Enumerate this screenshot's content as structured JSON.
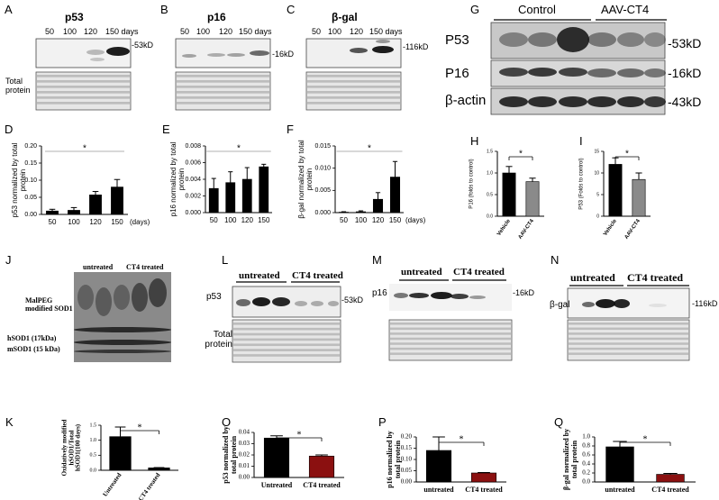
{
  "blots": {
    "A": {
      "panel": "A",
      "title": "p53",
      "lanes": [
        "50",
        "100",
        "120",
        "150 days"
      ],
      "marker": "-53kD",
      "loading": "Total protein"
    },
    "B": {
      "panel": "B",
      "title": "p16",
      "lanes": [
        "50",
        "100",
        "120",
        "150 days"
      ],
      "marker": "-16kD"
    },
    "C": {
      "panel": "C",
      "title": "β-gal",
      "lanes": [
        "50",
        "100",
        "120",
        "150 days"
      ],
      "marker": "-116kD"
    },
    "G": {
      "panel": "G",
      "groups": [
        "Control",
        "AAV-CT4"
      ],
      "rows": [
        "P53",
        "P16",
        "β-actin"
      ],
      "markers": [
        "-53kD",
        "-16kD",
        "-43kD"
      ]
    },
    "J": {
      "panel": "J",
      "groups": [
        "untreated",
        "CT4 treated"
      ],
      "bands": [
        "MalPEG modified SOD1",
        "hSOD1 (17kDa)",
        "mSOD1 (15 kDa)"
      ]
    },
    "L": {
      "panel": "L",
      "groups": [
        "untreated",
        "CT4 treated"
      ],
      "title": "p53",
      "marker": "-53kD",
      "loading": "Total protein"
    },
    "M": {
      "panel": "M",
      "groups": [
        "untreated",
        "CT4 treated"
      ],
      "title": "p16",
      "marker": "-16kD"
    },
    "N": {
      "panel": "N",
      "groups": [
        "untreated",
        "CT4 treated"
      ],
      "title": "β-gal",
      "marker": "-116kD"
    }
  },
  "chart_data": [
    {
      "type": "bar",
      "panel": "D",
      "y_label": "p53 normalized by total protein",
      "x_label": "(days)",
      "categories": [
        "50",
        "100",
        "120",
        "150"
      ],
      "values": [
        0.01,
        0.012,
        0.057,
        0.08
      ],
      "errors": [
        0.005,
        0.008,
        0.01,
        0.022
      ],
      "colors": [
        "#000000",
        "#000000",
        "#000000",
        "#000000"
      ],
      "ylim": [
        0,
        0.2
      ],
      "yticks": [
        {
          "value": 0,
          "label": "0.00"
        },
        0.05,
        {
          "value": 0.1,
          "label": "0.10"
        },
        0.15,
        {
          "value": 0.2,
          "label": "0.20"
        }
      ],
      "annotation": "*"
    },
    {
      "type": "bar",
      "panel": "E",
      "y_label": "p16 normalized by total protein",
      "categories": [
        "50",
        "100",
        "120",
        "150"
      ],
      "values": [
        0.0029,
        0.0036,
        0.004,
        0.0055
      ],
      "errors": [
        0.0012,
        0.0013,
        0.0014,
        0.0003
      ],
      "colors": [
        "#000000",
        "#000000",
        "#000000",
        "#000000"
      ],
      "ylim": [
        0,
        0.008
      ],
      "yticks": [
        {
          "value": 0,
          "label": "0.000"
        },
        {
          "value": 0.002,
          "label": "0.002"
        },
        {
          "value": 0.004,
          "label": "0.004"
        },
        {
          "value": 0.006,
          "label": "0.006"
        },
        {
          "value": 0.008,
          "label": "0.008"
        }
      ],
      "annotation": "*"
    },
    {
      "type": "bar",
      "panel": "F",
      "y_label": "β-gal normalized by total protein",
      "x_label": "(days)",
      "categories": [
        "50",
        "100",
        "120",
        "150"
      ],
      "values": [
        0.0001,
        0.0002,
        0.003,
        0.008
      ],
      "errors": [
        0.0001,
        0.0002,
        0.0015,
        0.0035
      ],
      "colors": [
        "#000000",
        "#000000",
        "#000000",
        "#000000"
      ],
      "ylim": [
        0,
        0.015
      ],
      "yticks": [
        {
          "value": 0,
          "label": "0.000"
        },
        {
          "value": 0.005,
          "label": "0.005"
        },
        {
          "value": 0.01,
          "label": "0.010"
        },
        {
          "value": 0.015,
          "label": "0.015"
        }
      ],
      "annotation": "*"
    },
    {
      "type": "bar",
      "panel": "H",
      "y_label": "P16 (folds to control)",
      "categories": [
        "Vehicle",
        "AAV-CT4"
      ],
      "values": [
        1.0,
        0.8
      ],
      "errors": [
        0.15,
        0.08
      ],
      "colors": [
        "#000000",
        "#8a8a8a"
      ],
      "ylim": [
        0,
        1.5
      ],
      "yticks": [
        {
          "value": 0,
          "label": "0.0"
        },
        0.5,
        {
          "value": 1,
          "label": "1.0"
        },
        1.5
      ],
      "annotation": "*"
    },
    {
      "type": "bar",
      "panel": "I",
      "y_label": "P53 (Folds to control)",
      "categories": [
        "Vehicle",
        "AAV-CT4"
      ],
      "values": [
        12,
        8.5
      ],
      "errors": [
        1.5,
        1.5
      ],
      "colors": [
        "#000000",
        "#8a8a8a"
      ],
      "ylim": [
        0,
        15
      ],
      "yticks": [
        0,
        5,
        10,
        15
      ],
      "annotation": "*"
    },
    {
      "type": "bar",
      "panel": "K",
      "y_label": "Oxidatively modified hSOD1/Total hSOD1(100 days)",
      "categories": [
        "Untreated",
        "CT4 treated"
      ],
      "values": [
        1.12,
        0.08
      ],
      "errors": [
        0.32,
        0.01
      ],
      "colors": [
        "#000000",
        "#000000"
      ],
      "ylim": [
        0,
        1.5
      ],
      "yticks": [
        {
          "value": 0,
          "label": "0.0"
        },
        0.5,
        {
          "value": 1,
          "label": "1.0"
        },
        1.5
      ],
      "annotation": "*"
    },
    {
      "type": "bar",
      "panel": "O",
      "y_label": "p53 normalized by total protein",
      "categories": [
        "Untreated",
        "CT4 treated"
      ],
      "values": [
        0.035,
        0.019
      ],
      "errors": [
        0.002,
        0.001
      ],
      "colors": [
        "#000000",
        "#8b1010"
      ],
      "ylim": [
        0,
        0.04
      ],
      "yticks": [
        {
          "value": 0,
          "label": "0.00"
        },
        0.01,
        0.02,
        0.03,
        0.04
      ],
      "annotation": "*"
    },
    {
      "type": "bar",
      "panel": "P",
      "y_label": "p16 normalized by total protein",
      "categories": [
        "untreated",
        "CT4 treated"
      ],
      "values": [
        0.14,
        0.04
      ],
      "errors": [
        0.06,
        0.002
      ],
      "colors": [
        "#000000",
        "#8b1010"
      ],
      "ylim": [
        0,
        0.2
      ],
      "yticks": [
        {
          "value": 0,
          "label": "0.00"
        },
        0.05,
        {
          "value": 0.1,
          "label": "0.10"
        },
        0.15,
        {
          "value": 0.2,
          "label": "0.20"
        }
      ],
      "annotation": "*"
    },
    {
      "type": "bar",
      "panel": "Q",
      "y_label": "β-gal normalized by total protein",
      "categories": [
        "untreated",
        "CT4 treated"
      ],
      "values": [
        0.78,
        0.17
      ],
      "errors": [
        0.12,
        0.02
      ],
      "colors": [
        "#000000",
        "#8b1010"
      ],
      "ylim": [
        0,
        1.0
      ],
      "yticks": [
        {
          "value": 0,
          "label": "0.0"
        },
        0.2,
        0.4,
        0.6,
        0.8,
        {
          "value": 1,
          "label": "1.0"
        }
      ],
      "annotation": "*"
    }
  ]
}
